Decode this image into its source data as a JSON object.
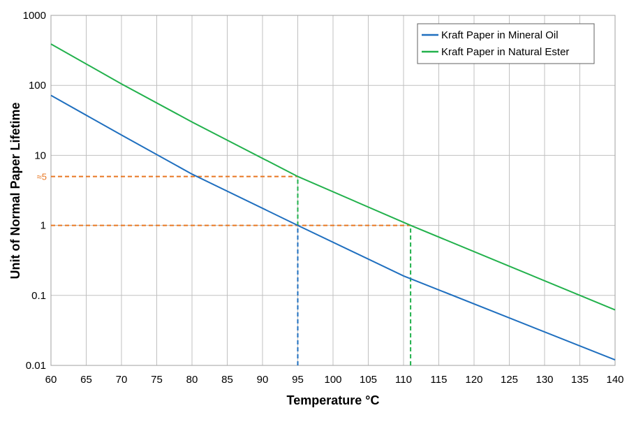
{
  "chart_data": {
    "type": "line",
    "xlabel": "Temperature °C",
    "ylabel": "Unit of Normal Paper Lifetime",
    "xlim": [
      60,
      140
    ],
    "ylim": [
      0.01,
      1000
    ],
    "y_scale": "log",
    "grid": true,
    "legend_position": "top-right",
    "x_ticks": [
      "60",
      "65",
      "70",
      "75",
      "80",
      "85",
      "90",
      "95",
      "100",
      "105",
      "110",
      "115",
      "120",
      "125",
      "130",
      "135",
      "140"
    ],
    "y_ticks": [
      "0.01",
      "0.1",
      "1",
      "10",
      "100",
      "1000"
    ],
    "series": [
      {
        "name": "Kraft Paper in Mineral Oil",
        "color": "#1f6fbf",
        "x": [
          60,
          70,
          80,
          95,
          110,
          140
        ],
        "y": [
          72,
          19.5,
          5.4,
          1,
          0.19,
          0.012
        ]
      },
      {
        "name": "Kraft Paper in Natural Ester",
        "color": "#22b14c",
        "x": [
          60,
          70,
          80,
          95,
          111,
          140
        ],
        "y": [
          390,
          105,
          30,
          5,
          1,
          0.062
        ]
      }
    ],
    "reference_lines": [
      {
        "label": "≈5",
        "y": 5,
        "x_start": 60,
        "x_end": 95,
        "color": "#e87722",
        "orientation": "horizontal"
      },
      {
        "label": "",
        "y": 1,
        "x_start": 60,
        "x_end": 111,
        "color": "#e87722",
        "orientation": "horizontal"
      },
      {
        "label": "",
        "x": 95,
        "y_start": 0.01,
        "y_end": 5,
        "color": "#22b14c",
        "orientation": "vertical"
      },
      {
        "label": "",
        "x": 95,
        "y_start": 0.01,
        "y_end": 1,
        "color": "#1f6fbf",
        "orientation": "vertical"
      },
      {
        "label": "",
        "x": 111,
        "y_start": 0.01,
        "y_end": 1,
        "color": "#22b14c",
        "orientation": "vertical"
      }
    ],
    "colors": {
      "grid": "#c0c0c0",
      "annotation": "#e87722"
    }
  }
}
